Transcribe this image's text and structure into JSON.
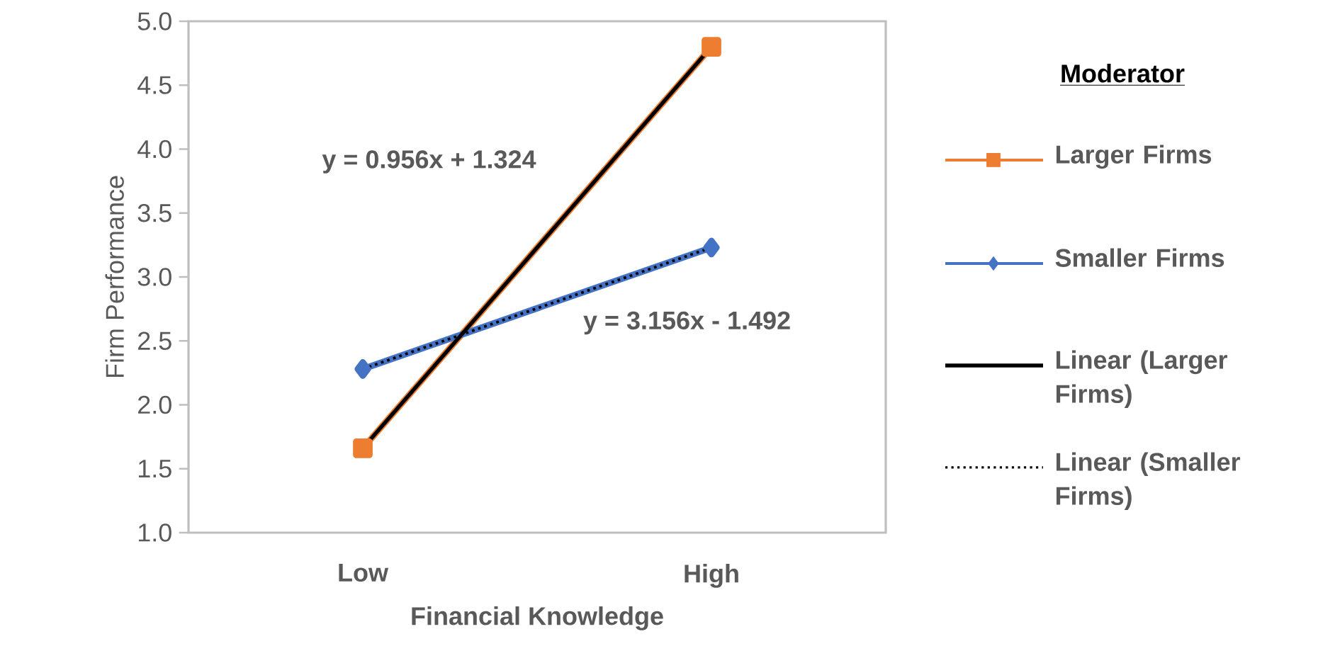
{
  "chart_data": {
    "type": "line",
    "xlabel": "Financial Knowledge",
    "ylabel": "Firm Performance",
    "legend_title": "Moderator",
    "legend": "right",
    "categories": [
      "Low",
      "High"
    ],
    "series": [
      {
        "name": "Larger Firms",
        "color": "#ed7d31",
        "values": [
          1.66,
          4.8
        ],
        "marker": "square",
        "line_style": "solid"
      },
      {
        "name": "Smaller Firms",
        "color": "#4472c4",
        "values": [
          2.28,
          3.23
        ],
        "marker": "diamond",
        "line_style": "solid"
      },
      {
        "name": "Linear (Larger Firms)",
        "color": "#000000",
        "values": [
          1.66,
          4.8
        ],
        "line_style": "solid"
      },
      {
        "name": "Linear (Smaller Firms)",
        "color": "#000000",
        "values": [
          2.28,
          3.23
        ],
        "line_style": "dotted"
      }
    ],
    "ylim": [
      1,
      5
    ],
    "yticks": [
      {
        "value": 1,
        "label": "1.0"
      },
      {
        "value": 1.5,
        "label": "1.5"
      },
      {
        "value": 2,
        "label": "2.0"
      },
      {
        "value": 2.5,
        "label": "2.5"
      },
      {
        "value": 3,
        "label": "3.0"
      },
      {
        "value": 3.5,
        "label": "3.5"
      },
      {
        "value": 4,
        "label": "4.0"
      },
      {
        "value": 4.5,
        "label": "4.5"
      },
      {
        "value": 5,
        "label": "5.0"
      }
    ],
    "annotations": [
      "y = 0.956x + 1.324",
      "y = 3.156x - 1.492"
    ]
  }
}
